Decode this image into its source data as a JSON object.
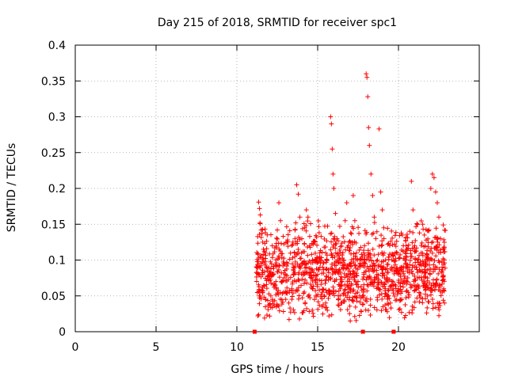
{
  "chart_data": {
    "type": "scatter",
    "title": "Day 215 of 2018, SRMTID for receiver spc1",
    "xlabel": "GPS time / hours",
    "ylabel": "SRMTID / TECUs",
    "xlim": [
      0,
      25
    ],
    "ylim": [
      0,
      0.4
    ],
    "xticks": [
      0,
      5,
      10,
      15,
      20
    ],
    "yticks": [
      0,
      0.05,
      0.1,
      0.15,
      0.2,
      0.25,
      0.3,
      0.35,
      0.4
    ],
    "ytick_labels": [
      "0",
      "0.05",
      "0.1",
      "0.15",
      "0.2",
      "0.25",
      "0.3",
      "0.35",
      "0.4"
    ],
    "grid": true,
    "marker": "+",
    "color": "#ff0000",
    "data_x_range": [
      11.2,
      22.9
    ],
    "zero_markers_x": [
      11.1,
      17.8,
      19.7
    ],
    "series": [
      {
        "name": "spc1",
        "points": [
          [
            11.3,
            0.108
          ],
          [
            11.35,
            0.181
          ],
          [
            11.4,
            0.172
          ],
          [
            11.45,
            0.163
          ],
          [
            11.5,
            0.142
          ],
          [
            11.6,
            0.125
          ],
          [
            11.7,
            0.112
          ],
          [
            11.75,
            0.098
          ],
          [
            11.9,
            0.085
          ],
          [
            12.0,
            0.078
          ],
          [
            12.1,
            0.05
          ],
          [
            12.2,
            0.045
          ],
          [
            12.3,
            0.062
          ],
          [
            12.4,
            0.092
          ],
          [
            12.5,
            0.142
          ],
          [
            12.6,
            0.18
          ],
          [
            12.7,
            0.155
          ],
          [
            12.8,
            0.07
          ],
          [
            12.9,
            0.055
          ],
          [
            13.0,
            0.08
          ],
          [
            13.1,
            0.061
          ],
          [
            13.2,
            0.073
          ],
          [
            13.4,
            0.06
          ],
          [
            13.5,
            0.09
          ],
          [
            13.6,
            0.13
          ],
          [
            13.7,
            0.205
          ],
          [
            13.8,
            0.192
          ],
          [
            13.9,
            0.16
          ],
          [
            14.0,
            0.11
          ],
          [
            14.1,
            0.083
          ],
          [
            14.2,
            0.145
          ],
          [
            14.3,
            0.17
          ],
          [
            14.4,
            0.16
          ],
          [
            14.5,
            0.12
          ],
          [
            14.6,
            0.078
          ],
          [
            14.7,
            0.06
          ],
          [
            14.8,
            0.045
          ],
          [
            14.9,
            0.1
          ],
          [
            15.0,
            0.08
          ],
          [
            15.1,
            0.072
          ],
          [
            15.2,
            0.1
          ],
          [
            15.3,
            0.09
          ],
          [
            15.4,
            0.118
          ],
          [
            15.5,
            0.04
          ],
          [
            15.6,
            0.03
          ],
          [
            15.7,
            0.022
          ],
          [
            15.8,
            0.3
          ],
          [
            15.85,
            0.29
          ],
          [
            15.9,
            0.255
          ],
          [
            15.95,
            0.22
          ],
          [
            16.0,
            0.2
          ],
          [
            16.1,
            0.165
          ],
          [
            16.2,
            0.13
          ],
          [
            16.3,
            0.085
          ],
          [
            16.4,
            0.06
          ],
          [
            16.5,
            0.04
          ],
          [
            16.6,
            0.1
          ],
          [
            16.7,
            0.155
          ],
          [
            16.8,
            0.18
          ],
          [
            16.9,
            0.12
          ],
          [
            17.0,
            0.08
          ],
          [
            17.1,
            0.065
          ],
          [
            17.2,
            0.19
          ],
          [
            17.3,
            0.155
          ],
          [
            17.4,
            0.11
          ],
          [
            17.5,
            0.07
          ],
          [
            17.6,
            0.05
          ],
          [
            17.7,
            0.028
          ],
          [
            17.9,
            0.12
          ],
          [
            18.0,
            0.36
          ],
          [
            18.05,
            0.355
          ],
          [
            18.1,
            0.328
          ],
          [
            18.15,
            0.285
          ],
          [
            18.2,
            0.26
          ],
          [
            18.3,
            0.22
          ],
          [
            18.4,
            0.19
          ],
          [
            18.5,
            0.16
          ],
          [
            18.6,
            0.13
          ],
          [
            18.7,
            0.1
          ],
          [
            18.8,
            0.283
          ],
          [
            18.9,
            0.195
          ],
          [
            19.0,
            0.17
          ],
          [
            19.1,
            0.13
          ],
          [
            19.2,
            0.1
          ],
          [
            19.3,
            0.075
          ],
          [
            19.4,
            0.05
          ],
          [
            19.5,
            0.04
          ],
          [
            19.6,
            0.065
          ],
          [
            19.8,
            0.11
          ],
          [
            19.9,
            0.085
          ],
          [
            20.0,
            0.06
          ],
          [
            20.1,
            0.045
          ],
          [
            20.2,
            0.09
          ],
          [
            20.3,
            0.12
          ],
          [
            20.4,
            0.1
          ],
          [
            20.5,
            0.07
          ],
          [
            20.6,
            0.055
          ],
          [
            20.7,
            0.14
          ],
          [
            20.8,
            0.21
          ],
          [
            20.9,
            0.17
          ],
          [
            21.0,
            0.12
          ],
          [
            21.1,
            0.09
          ],
          [
            21.2,
            0.065
          ],
          [
            21.3,
            0.05
          ],
          [
            21.4,
            0.11
          ],
          [
            21.5,
            0.15
          ],
          [
            21.6,
            0.135
          ],
          [
            21.7,
            0.095
          ],
          [
            21.8,
            0.075
          ],
          [
            21.9,
            0.06
          ],
          [
            22.0,
            0.2
          ],
          [
            22.1,
            0.22
          ],
          [
            22.2,
            0.215
          ],
          [
            22.3,
            0.195
          ],
          [
            22.4,
            0.18
          ],
          [
            22.5,
            0.16
          ],
          [
            22.6,
            0.13
          ],
          [
            22.7,
            0.09
          ],
          [
            22.8,
            0.06
          ],
          [
            22.85,
            0.04
          ]
        ]
      }
    ]
  }
}
